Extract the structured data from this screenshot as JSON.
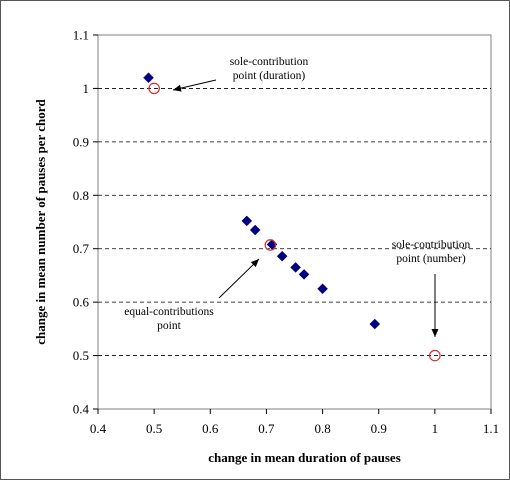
{
  "chart_data": {
    "type": "scatter",
    "title": "",
    "xlabel": "change in mean duration of pauses",
    "ylabel": "change in mean number of pauses per chord",
    "xlim": [
      0.4,
      1.1
    ],
    "ylim": [
      0.4,
      1.1
    ],
    "x_ticks": [
      "0.4",
      "0.5",
      "0.6",
      "0.7",
      "0.8",
      "0.9",
      "1",
      "1.1"
    ],
    "y_ticks": [
      "0.4",
      "0.5",
      "0.6",
      "0.7",
      "0.8",
      "0.9",
      "1",
      "1.1"
    ],
    "grid": "horizontal dashed",
    "legend": "none",
    "series": [
      {
        "marker": "diamond",
        "color": "#000080",
        "points": [
          {
            "x": 0.49,
            "y": 1.02
          },
          {
            "x": 0.665,
            "y": 0.752
          },
          {
            "x": 0.68,
            "y": 0.735
          },
          {
            "x": 0.71,
            "y": 0.708
          },
          {
            "x": 0.728,
            "y": 0.686
          },
          {
            "x": 0.752,
            "y": 0.665
          },
          {
            "x": 0.767,
            "y": 0.652
          },
          {
            "x": 0.8,
            "y": 0.625
          },
          {
            "x": 0.893,
            "y": 0.559
          }
        ]
      },
      {
        "marker": "open-circle",
        "color": "#cc3333",
        "points": [
          {
            "x": 0.5,
            "y": 1.0
          },
          {
            "x": 0.707,
            "y": 0.707
          },
          {
            "x": 1.0,
            "y": 0.5
          }
        ]
      }
    ],
    "annotations": [
      {
        "lines": [
          "sole-contribution",
          "point (duration)"
        ],
        "target": {
          "x": 0.5,
          "y": 1.0
        }
      },
      {
        "lines": [
          "equal-contributions",
          "point"
        ],
        "target": {
          "x": 0.707,
          "y": 0.707
        }
      },
      {
        "lines": [
          "sole-contribution",
          "point (number)"
        ],
        "target": {
          "x": 1.0,
          "y": 0.5
        }
      }
    ]
  }
}
